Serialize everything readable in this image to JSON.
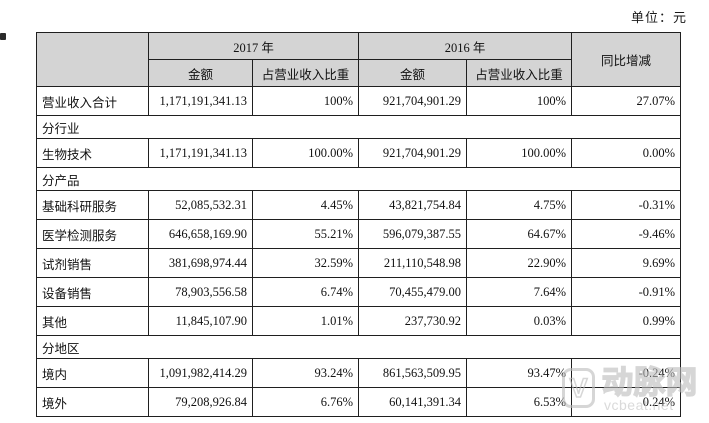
{
  "page": {
    "unit_label": "单位：元"
  },
  "table": {
    "header": {
      "year_2017": "2017 年",
      "year_2016": "2016 年",
      "amount_2017": "金额",
      "share_2017": "占营业收入比重",
      "amount_2016": "金额",
      "share_2016": "占营业收入比重",
      "yoy": "同比增减"
    },
    "rows": [
      {
        "type": "data",
        "mixed": true,
        "label": "营业收入合计",
        "a2017": "1,171,191,341.13",
        "p2017": "100%",
        "a2016": "921,704,901.29",
        "p2016": "100%",
        "yoy": "27.07%"
      },
      {
        "type": "section",
        "label": "分行业"
      },
      {
        "type": "data",
        "label": "生物技术",
        "a2017": "1,171,191,341.13",
        "p2017": "100.00%",
        "a2016": "921,704,901.29",
        "p2016": "100.00%",
        "yoy": "0.00%"
      },
      {
        "type": "section",
        "label": "分产品"
      },
      {
        "type": "data",
        "label": "基础科研服务",
        "a2017": "52,085,532.31",
        "p2017": "4.45%",
        "a2016": "43,821,754.84",
        "p2016": "4.75%",
        "yoy": "-0.31%"
      },
      {
        "type": "data",
        "label": "医学检测服务",
        "a2017": "646,658,169.90",
        "p2017": "55.21%",
        "a2016": "596,079,387.55",
        "p2016": "64.67%",
        "yoy": "-9.46%"
      },
      {
        "type": "data",
        "label": "试剂销售",
        "a2017": "381,698,974.44",
        "p2017": "32.59%",
        "a2016": "211,110,548.98",
        "p2016": "22.90%",
        "yoy": "9.69%"
      },
      {
        "type": "data",
        "label": "设备销售",
        "a2017": "78,903,556.58",
        "p2017": "6.74%",
        "a2016": "70,455,479.00",
        "p2016": "7.64%",
        "yoy": "-0.91%"
      },
      {
        "type": "data",
        "label": "其他",
        "a2017": "11,845,107.90",
        "p2017": "1.01%",
        "a2016": "237,730.92",
        "p2016": "0.03%",
        "yoy": "0.99%"
      },
      {
        "type": "section",
        "label": "分地区"
      },
      {
        "type": "data",
        "label": "境内",
        "a2017": "1,091,982,414.29",
        "p2017": "93.24%",
        "a2016": "861,563,509.95",
        "p2016": "93.47%",
        "yoy": "-0.24%"
      },
      {
        "type": "data",
        "label": "境外",
        "a2017": "79,208,926.84",
        "p2017": "6.76%",
        "a2016": "60,141,391.34",
        "p2016": "6.53%",
        "yoy": "0.24%"
      }
    ]
  },
  "watermark": {
    "logo_glyph": "V",
    "brand": "动脉网",
    "site": "vcbeat.net"
  },
  "colors": {
    "header_gray": "#d4d4d4",
    "border": "#1f1f1f",
    "watermark_gray": "#bdbdbd",
    "background": "#ffffff"
  }
}
